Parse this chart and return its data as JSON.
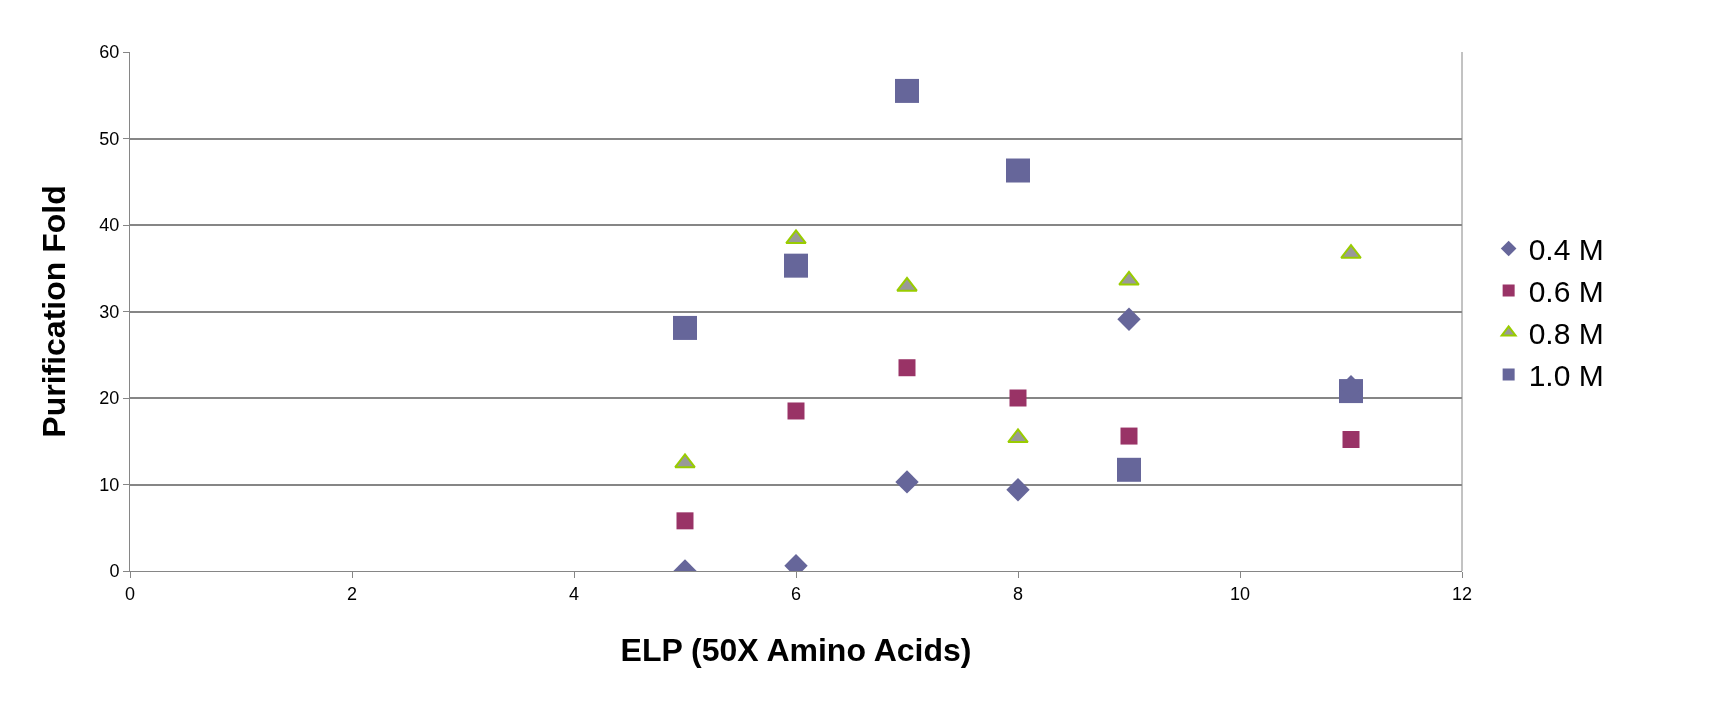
{
  "chart_data": {
    "type": "scatter",
    "xlabel": "ELP (50X Amino Acids)",
    "ylabel": "Purification Fold",
    "x": [
      5,
      6,
      7,
      8,
      9,
      11
    ],
    "series": [
      {
        "name": "0.4 M",
        "color": "#66669a",
        "marker": "diamond",
        "values": [
          0,
          0.6,
          10.3,
          9.4,
          29.1,
          21.3
        ]
      },
      {
        "name": "0.6 M",
        "color": "#993366",
        "marker": "square",
        "values": [
          5.8,
          18.5,
          23.5,
          20.0,
          15.6,
          15.2
        ]
      },
      {
        "name": "0.8 M",
        "color": "#999999",
        "marker": "triangle",
        "values": [
          12.5,
          38.4,
          32.9,
          15.4,
          33.6,
          36.7
        ]
      },
      {
        "name": "1.0 M",
        "color": "#66669a",
        "marker": "square",
        "values": [
          28.1,
          35.3,
          55.5,
          46.3,
          11.7,
          20.8
        ]
      }
    ],
    "xlim": [
      0,
      12
    ],
    "xticks": [
      0,
      2,
      4,
      6,
      8,
      10,
      12
    ],
    "ylim": [
      0,
      60
    ],
    "yticks": [
      0,
      10,
      20,
      30,
      40,
      50,
      60
    ],
    "grid": "y",
    "legend": "right"
  }
}
